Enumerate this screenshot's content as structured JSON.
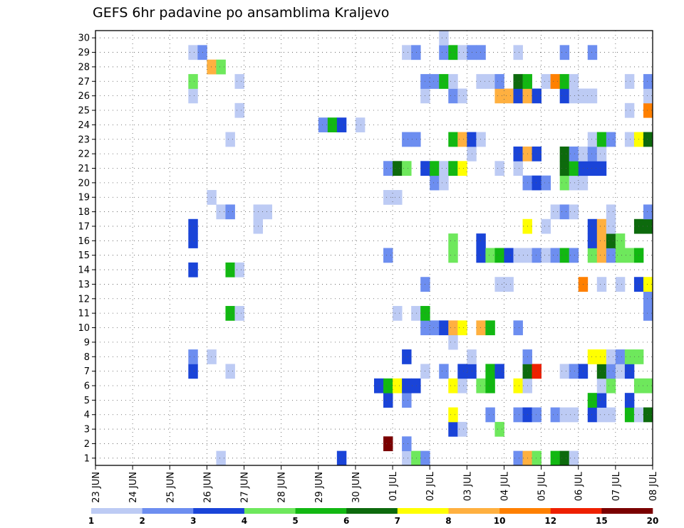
{
  "chart_data": {
    "type": "heatmap",
    "title": "GEFS 6hr padavine po ansamblima Kraljevo",
    "ylabels": [
      "1",
      "2",
      "3",
      "4",
      "5",
      "6",
      "7",
      "8",
      "9",
      "10",
      "11",
      "12",
      "13",
      "14",
      "15",
      "16",
      "17",
      "18",
      "19",
      "20",
      "21",
      "22",
      "23",
      "24",
      "25",
      "26",
      "27",
      "28",
      "29",
      "30"
    ],
    "xlabels": [
      "23 JUN",
      "24 JUN",
      "25 JUN",
      "26 JUN",
      "27 JUN",
      "28 JUN",
      "29 JUN",
      "30 JUN",
      "01 JUL",
      "02 JUL",
      "03 JUL",
      "04 JUL",
      "05 JUL",
      "06 JUL",
      "07 JUL",
      "08 JUL"
    ],
    "x_unit": "6-hour step from 23 JUN 00 UTC",
    "x_range": [
      0,
      60
    ],
    "y_range": [
      0.5,
      30.5
    ],
    "grid": true,
    "colorbar": {
      "colors": [
        "#bdcbf4",
        "#6d8ef0",
        "#1a44d8",
        "#6ee85c",
        "#12b812",
        "#0d6a0d",
        "#ffff00",
        "#ffb040",
        "#ff8000",
        "#ee2000",
        "#7a0000"
      ],
      "labels": [
        "1",
        "2",
        "3",
        "4",
        "5",
        "6",
        "7",
        "8",
        "10",
        "12",
        "15",
        "20"
      ]
    },
    "members": [
      {
        "member": 1,
        "cells": [
          [
            13.5,
            0
          ],
          [
            26.5,
            2
          ],
          [
            33.5,
            0
          ],
          [
            34.5,
            3
          ],
          [
            35.5,
            1
          ],
          [
            45.5,
            1
          ],
          [
            46.5,
            7
          ],
          [
            47.5,
            3
          ],
          [
            49.5,
            4
          ],
          [
            50.5,
            5
          ],
          [
            51.5,
            0
          ]
        ]
      },
      {
        "member": 2,
        "cells": [
          [
            31.5,
            10
          ],
          [
            33.5,
            1
          ]
        ]
      },
      {
        "member": 3,
        "cells": [
          [
            38.5,
            2
          ],
          [
            39.5,
            0
          ],
          [
            43.5,
            3
          ]
        ]
      },
      {
        "member": 4,
        "cells": [
          [
            38.5,
            6
          ],
          [
            42.5,
            1
          ],
          [
            45.5,
            1
          ],
          [
            46.5,
            2
          ],
          [
            47.5,
            1
          ],
          [
            49.5,
            1
          ],
          [
            50.5,
            0
          ],
          [
            51.5,
            0
          ],
          [
            53.5,
            2
          ],
          [
            54.5,
            0
          ],
          [
            55.5,
            0
          ],
          [
            57.5,
            4
          ],
          [
            58.5,
            0
          ],
          [
            59.5,
            5
          ]
        ]
      },
      {
        "member": 5,
        "cells": [
          [
            31.5,
            2
          ],
          [
            33.5,
            1
          ],
          [
            53.5,
            4
          ],
          [
            54.5,
            2
          ],
          [
            57.5,
            2
          ]
        ]
      },
      {
        "member": 6,
        "cells": [
          [
            30.5,
            2
          ],
          [
            31.5,
            4
          ],
          [
            32.5,
            6
          ],
          [
            33.5,
            2
          ],
          [
            34.5,
            2
          ],
          [
            38.5,
            6
          ],
          [
            39.5,
            0
          ],
          [
            41.5,
            3
          ],
          [
            42.5,
            4
          ],
          [
            45.5,
            6
          ],
          [
            46.5,
            0
          ],
          [
            54.5,
            0
          ],
          [
            55.5,
            3
          ],
          [
            58.5,
            3
          ],
          [
            59.5,
            3
          ]
        ]
      },
      {
        "member": 7,
        "cells": [
          [
            10.5,
            2
          ],
          [
            14.5,
            0
          ],
          [
            35.5,
            0
          ],
          [
            37.5,
            1
          ],
          [
            39.5,
            2
          ],
          [
            40.5,
            2
          ],
          [
            42.5,
            4
          ],
          [
            43.5,
            2
          ],
          [
            46.5,
            5
          ],
          [
            47.5,
            9
          ],
          [
            50.5,
            0
          ],
          [
            51.5,
            1
          ],
          [
            52.5,
            2
          ],
          [
            54.5,
            5
          ],
          [
            55.5,
            1
          ],
          [
            56.5,
            0
          ],
          [
            57.5,
            2
          ]
        ]
      },
      {
        "member": 8,
        "cells": [
          [
            10.5,
            1
          ],
          [
            12.5,
            0
          ],
          [
            33.5,
            2
          ],
          [
            40.5,
            0
          ],
          [
            46.5,
            1
          ],
          [
            53.5,
            6
          ],
          [
            54.5,
            6
          ],
          [
            55.5,
            0
          ],
          [
            56.5,
            1
          ],
          [
            57.5,
            3
          ],
          [
            58.5,
            3
          ]
        ]
      },
      {
        "member": 9,
        "cells": [
          [
            38.5,
            0
          ]
        ]
      },
      {
        "member": 10,
        "cells": [
          [
            35.5,
            1
          ],
          [
            36.5,
            1
          ],
          [
            37.5,
            2
          ],
          [
            38.5,
            7
          ],
          [
            39.5,
            6
          ],
          [
            41.5,
            7
          ],
          [
            42.5,
            4
          ],
          [
            45.5,
            1
          ]
        ]
      },
      {
        "member": 11,
        "cells": [
          [
            14.5,
            4
          ],
          [
            15.5,
            0
          ],
          [
            32.5,
            0
          ],
          [
            34.5,
            0
          ],
          [
            35.5,
            4
          ],
          [
            59.5,
            1
          ]
        ]
      },
      {
        "member": 12,
        "cells": [
          [
            59.5,
            1
          ]
        ]
      },
      {
        "member": 13,
        "cells": [
          [
            35.5,
            1
          ],
          [
            43.5,
            0
          ],
          [
            44.5,
            0
          ],
          [
            52.5,
            8
          ],
          [
            54.5,
            0
          ],
          [
            56.5,
            0
          ],
          [
            58.5,
            2
          ],
          [
            59.5,
            6
          ]
        ]
      },
      {
        "member": 14,
        "cells": [
          [
            10.5,
            2
          ],
          [
            14.5,
            4
          ],
          [
            15.5,
            0
          ]
        ]
      },
      {
        "member": 15,
        "cells": [
          [
            31.5,
            1
          ],
          [
            38.5,
            3
          ],
          [
            41.5,
            2
          ],
          [
            42.5,
            3
          ],
          [
            43.5,
            4
          ],
          [
            44.5,
            2
          ],
          [
            45.5,
            0
          ],
          [
            46.5,
            0
          ],
          [
            47.5,
            1
          ],
          [
            48.5,
            0
          ],
          [
            49.5,
            1
          ],
          [
            50.5,
            4
          ],
          [
            51.5,
            1
          ],
          [
            53.5,
            3
          ],
          [
            54.5,
            7
          ],
          [
            55.5,
            1
          ],
          [
            56.5,
            3
          ],
          [
            57.5,
            3
          ],
          [
            58.5,
            4
          ]
        ]
      },
      {
        "member": 16,
        "cells": [
          [
            10.5,
            2
          ],
          [
            38.5,
            3
          ],
          [
            41.5,
            2
          ],
          [
            53.5,
            2
          ],
          [
            54.5,
            7
          ],
          [
            55.5,
            5
          ],
          [
            56.5,
            3
          ]
        ]
      },
      {
        "member": 17,
        "cells": [
          [
            10.5,
            2
          ],
          [
            17.5,
            0
          ],
          [
            46.5,
            6
          ],
          [
            48.5,
            0
          ],
          [
            53.5,
            2
          ],
          [
            54.5,
            7
          ],
          [
            55.5,
            0
          ],
          [
            58.5,
            5
          ],
          [
            59.5,
            5
          ]
        ]
      },
      {
        "member": 18,
        "cells": [
          [
            13.5,
            0
          ],
          [
            14.5,
            1
          ],
          [
            17.5,
            0
          ],
          [
            18.5,
            0
          ],
          [
            49.5,
            0
          ],
          [
            50.5,
            1
          ],
          [
            51.5,
            0
          ],
          [
            55.5,
            0
          ],
          [
            59.5,
            1
          ]
        ]
      },
      {
        "member": 19,
        "cells": [
          [
            12.5,
            0
          ],
          [
            31.5,
            0
          ],
          [
            32.5,
            0
          ]
        ]
      },
      {
        "member": 20,
        "cells": [
          [
            36.5,
            1
          ],
          [
            37.5,
            0
          ],
          [
            46.5,
            1
          ],
          [
            47.5,
            2
          ],
          [
            48.5,
            1
          ],
          [
            50.5,
            3
          ],
          [
            51.5,
            0
          ],
          [
            52.5,
            0
          ]
        ]
      },
      {
        "member": 21,
        "cells": [
          [
            31.5,
            1
          ],
          [
            32.5,
            5
          ],
          [
            33.5,
            3
          ],
          [
            35.5,
            2
          ],
          [
            36.5,
            4
          ],
          [
            37.5,
            0
          ],
          [
            38.5,
            4
          ],
          [
            39.5,
            6
          ],
          [
            43.5,
            0
          ],
          [
            45.5,
            0
          ],
          [
            50.5,
            5
          ],
          [
            51.5,
            4
          ],
          [
            52.5,
            2
          ],
          [
            53.5,
            2
          ],
          [
            54.5,
            2
          ]
        ]
      },
      {
        "member": 22,
        "cells": [
          [
            40.5,
            0
          ],
          [
            45.5,
            2
          ],
          [
            46.5,
            7
          ],
          [
            47.5,
            2
          ],
          [
            50.5,
            5
          ],
          [
            51.5,
            1
          ],
          [
            52.5,
            0
          ],
          [
            53.5,
            1
          ],
          [
            54.5,
            0
          ]
        ]
      },
      {
        "member": 23,
        "cells": [
          [
            14.5,
            0
          ],
          [
            33.5,
            1
          ],
          [
            34.5,
            1
          ],
          [
            38.5,
            4
          ],
          [
            39.5,
            7
          ],
          [
            40.5,
            2
          ],
          [
            41.5,
            0
          ],
          [
            53.5,
            0
          ],
          [
            54.5,
            4
          ],
          [
            55.5,
            1
          ],
          [
            57.5,
            0
          ],
          [
            58.5,
            6
          ],
          [
            59.5,
            5
          ]
        ]
      },
      {
        "member": 24,
        "cells": [
          [
            24.5,
            1
          ],
          [
            25.5,
            4
          ],
          [
            26.5,
            2
          ],
          [
            28.5,
            0
          ]
        ]
      },
      {
        "member": 25,
        "cells": [
          [
            15.5,
            0
          ],
          [
            57.5,
            0
          ],
          [
            59.5,
            8
          ]
        ]
      },
      {
        "member": 26,
        "cells": [
          [
            10.5,
            0
          ],
          [
            35.5,
            0
          ],
          [
            38.5,
            1
          ],
          [
            39.5,
            0
          ],
          [
            43.5,
            7
          ],
          [
            44.5,
            7
          ],
          [
            45.5,
            2
          ],
          [
            46.5,
            7
          ],
          [
            47.5,
            2
          ],
          [
            50.5,
            2
          ],
          [
            51.5,
            0
          ],
          [
            52.5,
            0
          ],
          [
            53.5,
            0
          ],
          [
            59.5,
            0
          ]
        ]
      },
      {
        "member": 27,
        "cells": [
          [
            10.5,
            3
          ],
          [
            15.5,
            0
          ],
          [
            35.5,
            1
          ],
          [
            36.5,
            1
          ],
          [
            37.5,
            4
          ],
          [
            38.5,
            0
          ],
          [
            41.5,
            0
          ],
          [
            42.5,
            0
          ],
          [
            43.5,
            1
          ],
          [
            45.5,
            5
          ],
          [
            46.5,
            4
          ],
          [
            48.5,
            0
          ],
          [
            49.5,
            8
          ],
          [
            50.5,
            4
          ],
          [
            51.5,
            0
          ],
          [
            57.5,
            0
          ],
          [
            59.5,
            1
          ]
        ]
      },
      {
        "member": 28,
        "cells": [
          [
            12.5,
            7
          ],
          [
            13.5,
            3
          ]
        ]
      },
      {
        "member": 29,
        "cells": [
          [
            10.5,
            0
          ],
          [
            11.5,
            1
          ],
          [
            33.5,
            0
          ],
          [
            34.5,
            1
          ],
          [
            37.5,
            1
          ],
          [
            38.5,
            4
          ],
          [
            39.5,
            0
          ],
          [
            40.5,
            1
          ],
          [
            41.5,
            1
          ],
          [
            45.5,
            0
          ],
          [
            50.5,
            1
          ],
          [
            53.5,
            1
          ]
        ]
      },
      {
        "member": 30,
        "cells": [
          [
            37.5,
            0
          ]
        ]
      }
    ]
  }
}
